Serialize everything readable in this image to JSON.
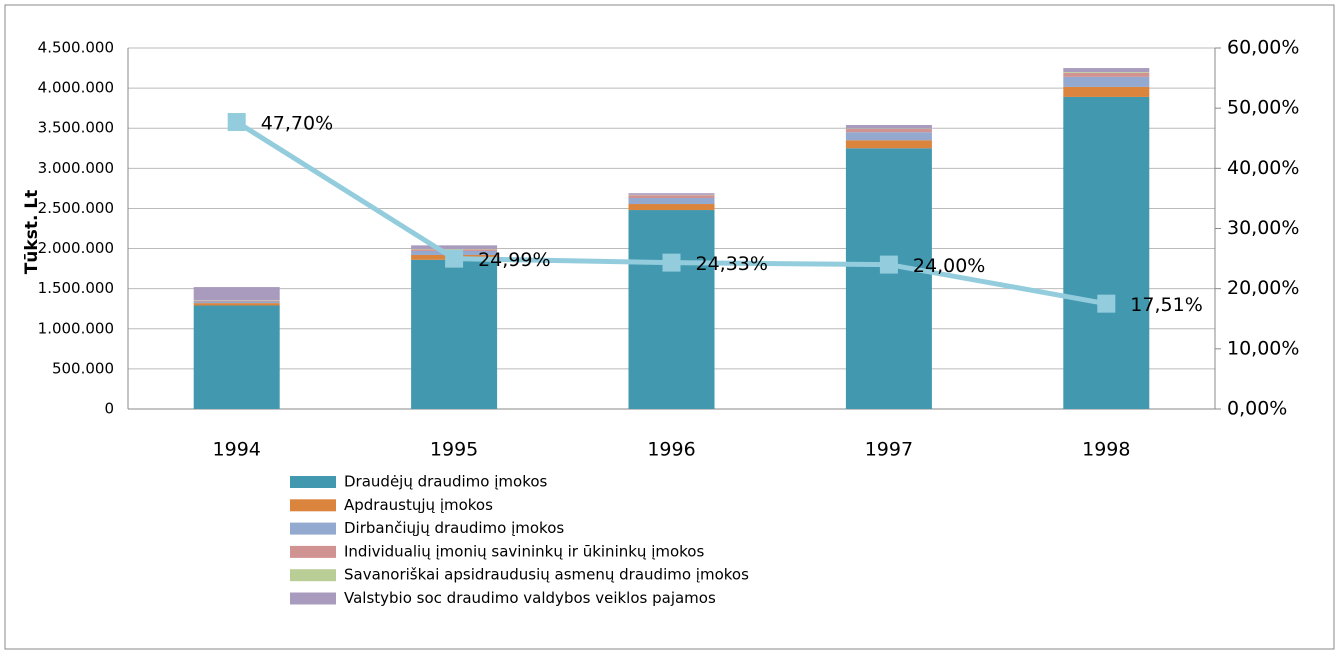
{
  "chart_data": {
    "type": "bar",
    "stacked": true,
    "y_label": "Tūkst. Lt",
    "categories": [
      "1994",
      "1995",
      "1996",
      "1997",
      "1998"
    ],
    "series": [
      {
        "name": "Draudėjų draudimo įmokos",
        "color": "#4198af",
        "values": [
          1290000,
          1860000,
          2480000,
          3250000,
          3890000
        ]
      },
      {
        "name": "Apdraustųjų įmokos",
        "color": "#db843d",
        "values": [
          30000,
          60000,
          75000,
          100000,
          125000
        ]
      },
      {
        "name": "Dirbančiųjų draudimo įmokos",
        "color": "#93a9cf",
        "values": [
          20000,
          50000,
          75000,
          100000,
          125000
        ]
      },
      {
        "name": "Individualių įmonių savininkų ir ūkininkų įmokos",
        "color": "#d19392",
        "values": [
          10000,
          20000,
          35000,
          40000,
          50000
        ]
      },
      {
        "name": "Savanoriškai apsidraudusių asmenų draudimo įmokos",
        "color": "#b9cd96",
        "values": [
          5000,
          5000,
          5000,
          5000,
          10000
        ]
      },
      {
        "name": "Valstybio soc draudimo valdybos veiklos pajamos",
        "color": "#a99bbd",
        "values": [
          165000,
          45000,
          20000,
          45000,
          50000
        ]
      },
      {
        "type": "line",
        "axis": "y2",
        "color": "#93cddd",
        "values": [
          47.7,
          24.99,
          24.33,
          24.0,
          17.51
        ],
        "value_labels": [
          "47,70%",
          "24,99%",
          "24,33%",
          "24,00%",
          "17,51%"
        ]
      }
    ],
    "ylim": [
      0,
      4500000
    ],
    "yticks": [
      0,
      {
        "value": 500000,
        "label": "500.000"
      },
      {
        "value": 1000000,
        "label": "1.000.000"
      },
      {
        "value": 1500000,
        "label": "1.500.000"
      },
      {
        "value": 2000000,
        "label": "2.000.000"
      },
      {
        "value": 2500000,
        "label": "2.500.000"
      },
      {
        "value": 3000000,
        "label": "3.000.000"
      },
      {
        "value": 3500000,
        "label": "3.500.000"
      },
      {
        "value": 4000000,
        "label": "4.000.000"
      },
      {
        "value": 4500000,
        "label": "4.500.000"
      }
    ],
    "y2lim": [
      0,
      60
    ],
    "y2ticks": [
      {
        "value": 0,
        "label": "0,00%"
      },
      {
        "value": 10,
        "label": "10,00%"
      },
      {
        "value": 20,
        "label": "20,00%"
      },
      {
        "value": 30,
        "label": "30,00%"
      },
      {
        "value": 40,
        "label": "40,00%"
      },
      {
        "value": 50,
        "label": "50,00%"
      },
      {
        "value": 60,
        "label": "60,00%"
      }
    ],
    "grid": true
  }
}
